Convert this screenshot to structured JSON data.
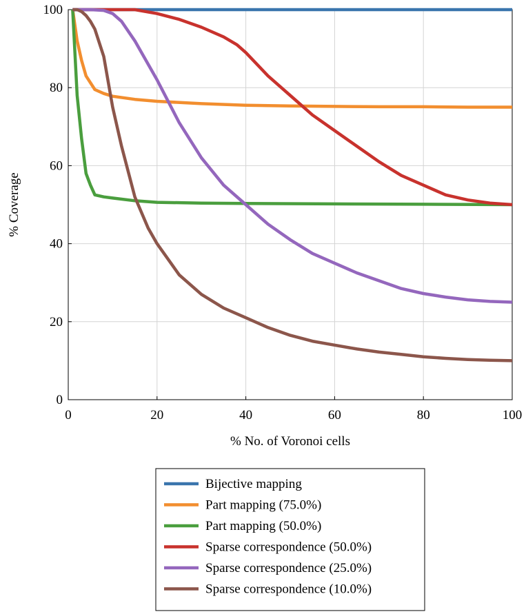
{
  "chart_data": {
    "type": "line",
    "xlabel": "% No. of Voronoi cells",
    "ylabel": "% Coverage",
    "xlim": [
      0,
      100
    ],
    "ylim": [
      0,
      100
    ],
    "xticks": [
      0,
      20,
      40,
      60,
      80,
      100
    ],
    "yticks": [
      0,
      20,
      40,
      60,
      80,
      100
    ],
    "grid": true,
    "legend_position": "bottom-center",
    "series": [
      {
        "name": "Bijective mapping",
        "color": "#3a75ad",
        "x": [
          1,
          100
        ],
        "y": [
          100,
          100
        ]
      },
      {
        "name": "Part mapping (75.0%)",
        "color": "#f28e2f",
        "x": [
          1,
          2,
          3,
          4,
          6,
          8,
          10,
          15,
          20,
          30,
          40,
          50,
          60,
          70,
          80,
          90,
          100
        ],
        "y": [
          100,
          92,
          87,
          83,
          79.5,
          78.5,
          77.8,
          77,
          76.5,
          75.9,
          75.5,
          75.3,
          75.2,
          75.1,
          75.1,
          75,
          75
        ]
      },
      {
        "name": "Part mapping (50.0%)",
        "color": "#4a9e3e",
        "x": [
          1,
          2,
          3,
          4,
          5,
          6,
          8,
          10,
          15,
          20,
          30,
          40,
          60,
          80,
          100
        ],
        "y": [
          100,
          78,
          67,
          58,
          55,
          52.5,
          52,
          51.7,
          51,
          50.6,
          50.4,
          50.3,
          50.2,
          50.1,
          50
        ]
      },
      {
        "name": "Sparse correspondence (50.0%)",
        "color": "#c8322d",
        "x": [
          1,
          10,
          15,
          20,
          25,
          30,
          35,
          38,
          40,
          45,
          50,
          55,
          60,
          65,
          70,
          75,
          80,
          85,
          90,
          95,
          100
        ],
        "y": [
          100,
          100,
          100,
          99,
          97.5,
          95.5,
          93,
          91,
          89,
          83,
          78,
          73,
          69,
          65,
          61,
          57.5,
          55,
          52.5,
          51.2,
          50.4,
          50
        ]
      },
      {
        "name": "Sparse correspondence (25.0%)",
        "color": "#9467bd",
        "x": [
          1,
          5,
          8,
          10,
          12,
          15,
          20,
          25,
          30,
          35,
          40,
          45,
          50,
          55,
          60,
          65,
          70,
          75,
          80,
          85,
          90,
          95,
          100
        ],
        "y": [
          100,
          100,
          99.8,
          99,
          97,
          92,
          82,
          71,
          62,
          55,
          50,
          45,
          41,
          37.5,
          35,
          32.5,
          30.5,
          28.5,
          27.2,
          26.3,
          25.6,
          25.2,
          25
        ]
      },
      {
        "name": "Sparse correspondence (10.0%)",
        "color": "#8c564b",
        "x": [
          1,
          2,
          3,
          4,
          5,
          6,
          8,
          10,
          12,
          15,
          18,
          20,
          25,
          30,
          35,
          40,
          45,
          50,
          55,
          60,
          65,
          70,
          75,
          80,
          85,
          90,
          95,
          100
        ],
        "y": [
          100,
          100,
          99.5,
          98.5,
          97,
          95,
          88,
          75,
          65,
          52,
          44,
          40,
          32,
          27,
          23.5,
          21,
          18.5,
          16.5,
          15,
          14,
          13,
          12.2,
          11.6,
          11,
          10.6,
          10.3,
          10.1,
          10
        ]
      }
    ]
  }
}
